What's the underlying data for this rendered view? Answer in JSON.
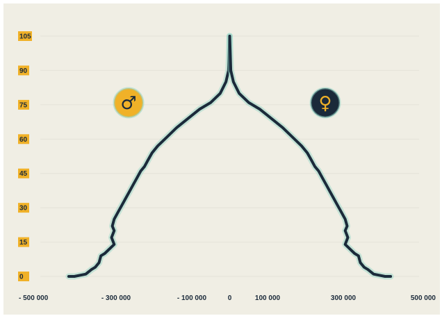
{
  "chart_data": {
    "type": "line",
    "title": "",
    "xlabel": "",
    "ylabel": "",
    "xlim": [
      -500000,
      500000
    ],
    "ylim": [
      0,
      105
    ],
    "grid": true,
    "x_ticks": [
      {
        "value": -500000,
        "label": "- 500 000"
      },
      {
        "value": -300000,
        "label": "- 300 000"
      },
      {
        "value": -100000,
        "label": "- 100 000"
      },
      {
        "value": 0,
        "label": "0"
      },
      {
        "value": 100000,
        "label": "100 000"
      },
      {
        "value": 300000,
        "label": "300 000"
      },
      {
        "value": 500000,
        "label": "500 000"
      }
    ],
    "y_ticks": [
      {
        "value": 0,
        "label": "0"
      },
      {
        "value": 15,
        "label": "15"
      },
      {
        "value": 30,
        "label": "30"
      },
      {
        "value": 45,
        "label": "45"
      },
      {
        "value": 60,
        "label": "60"
      },
      {
        "value": 75,
        "label": "75"
      },
      {
        "value": 90,
        "label": "90"
      },
      {
        "value": 105,
        "label": "105"
      }
    ],
    "series": [
      {
        "name": "",
        "symbol": "male-symbol-icon",
        "color": "#1b2a3a",
        "points": [
          [
            0,
            105
          ],
          [
            -3000,
            90
          ],
          [
            -10000,
            85
          ],
          [
            -25000,
            80
          ],
          [
            -50000,
            76
          ],
          [
            -80000,
            73
          ],
          [
            -110000,
            69
          ],
          [
            -140000,
            65
          ],
          [
            -165000,
            61
          ],
          [
            -190000,
            57
          ],
          [
            -205000,
            54
          ],
          [
            -215000,
            51
          ],
          [
            -225000,
            48
          ],
          [
            -235000,
            46
          ],
          [
            -245000,
            43
          ],
          [
            -255000,
            40
          ],
          [
            -265000,
            37
          ],
          [
            -275000,
            34
          ],
          [
            -285000,
            31
          ],
          [
            -295000,
            28
          ],
          [
            -305000,
            25
          ],
          [
            -310000,
            22
          ],
          [
            -305000,
            20
          ],
          [
            -312000,
            17
          ],
          [
            -305000,
            14
          ],
          [
            -330000,
            10
          ],
          [
            -340000,
            9
          ],
          [
            -345000,
            6
          ],
          [
            -355000,
            4
          ],
          [
            -365000,
            3
          ],
          [
            -380000,
            1
          ],
          [
            -410000,
            0
          ],
          [
            -425000,
            0
          ]
        ]
      },
      {
        "name": "",
        "symbol": "female-symbol-icon",
        "color": "#1b2a3a",
        "points": [
          [
            0,
            105
          ],
          [
            3000,
            90
          ],
          [
            10000,
            85
          ],
          [
            25000,
            80
          ],
          [
            50000,
            76
          ],
          [
            80000,
            73
          ],
          [
            110000,
            69
          ],
          [
            140000,
            65
          ],
          [
            165000,
            61
          ],
          [
            190000,
            57
          ],
          [
            205000,
            54
          ],
          [
            215000,
            51
          ],
          [
            225000,
            48
          ],
          [
            235000,
            46
          ],
          [
            245000,
            43
          ],
          [
            255000,
            40
          ],
          [
            265000,
            37
          ],
          [
            275000,
            34
          ],
          [
            285000,
            31
          ],
          [
            295000,
            28
          ],
          [
            305000,
            25
          ],
          [
            310000,
            22
          ],
          [
            305000,
            20
          ],
          [
            312000,
            17
          ],
          [
            305000,
            14
          ],
          [
            330000,
            10
          ],
          [
            340000,
            9
          ],
          [
            345000,
            6
          ],
          [
            355000,
            4
          ],
          [
            365000,
            3
          ],
          [
            380000,
            1
          ],
          [
            410000,
            0
          ],
          [
            425000,
            0
          ]
        ]
      }
    ]
  },
  "legend": {
    "male": {
      "symbol": "♂",
      "bg_color": "#f0b128",
      "fg_color": "#1b2a3a"
    },
    "female": {
      "symbol": "♀",
      "bg_color": "#1b2a3a",
      "fg_color": "#f0b128"
    }
  },
  "colors": {
    "background": "#f0eee4",
    "accent": "#f0b128",
    "line": "#1b2a3a"
  }
}
